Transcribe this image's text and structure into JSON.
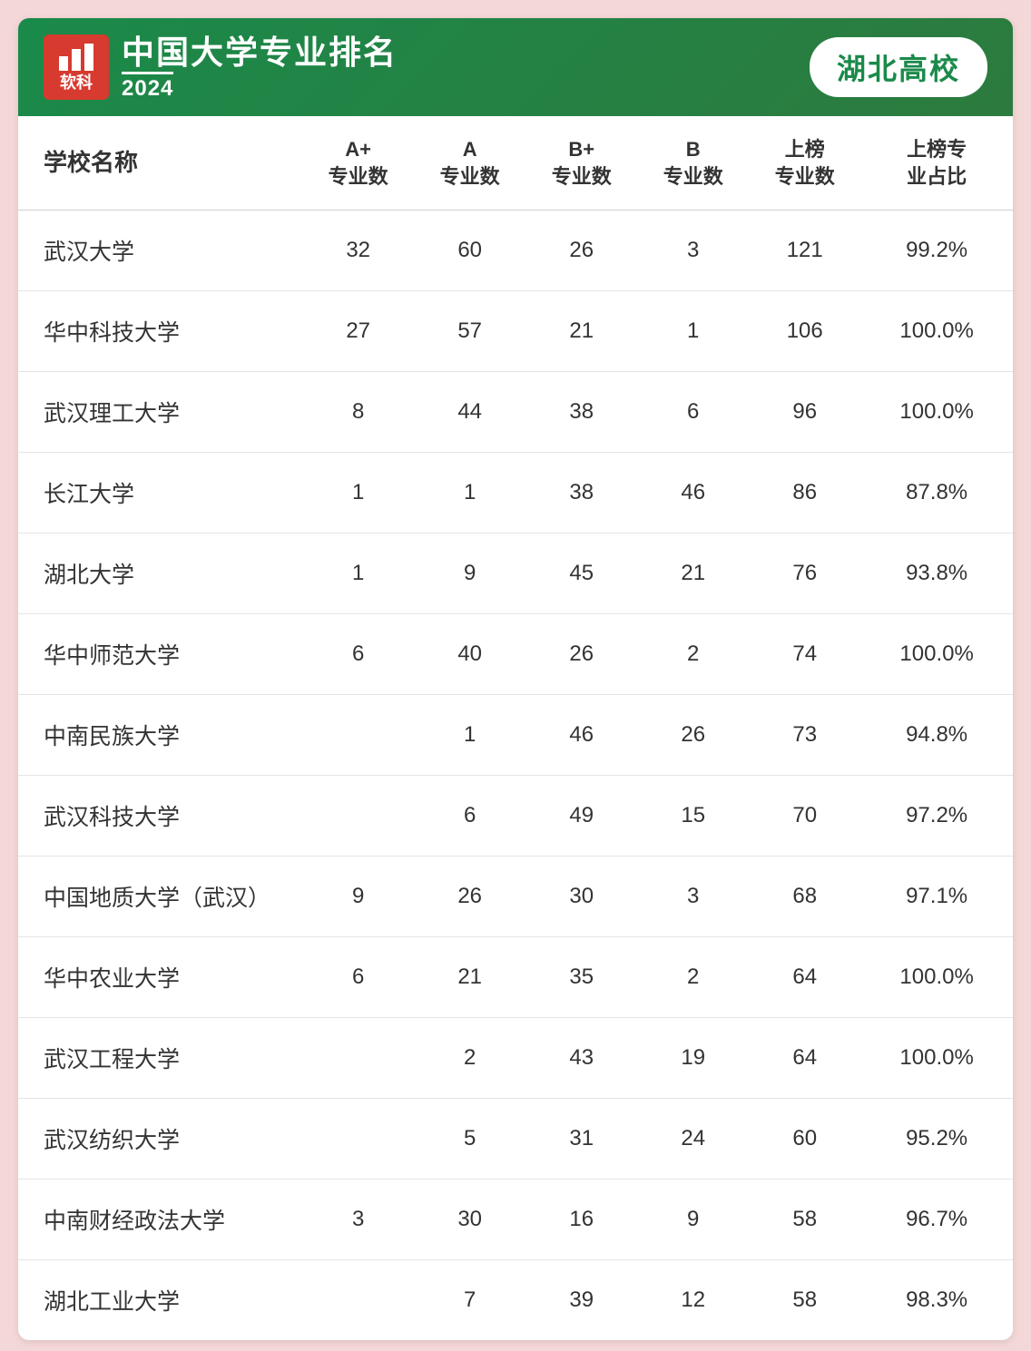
{
  "header": {
    "logo_label": "软科",
    "title": "中国大学专业排名",
    "year": "2024",
    "badge": "湖北高校"
  },
  "colors": {
    "page_bg": "#f4d7d7",
    "header_bg_start": "#1a8a4a",
    "header_bg_end": "#2d7a3e",
    "logo_bg": "#d73a2e",
    "badge_bg": "#ffffff",
    "badge_text": "#1a8a4a",
    "text": "#333333",
    "row_border": "#e5e5e5",
    "header_border": "#d0d0d0"
  },
  "table": {
    "type": "table",
    "columns": [
      {
        "key": "name",
        "label": "学校名称",
        "width": "28%",
        "align": "left"
      },
      {
        "key": "a_plus",
        "label": "A+\n专业数",
        "width": "11%",
        "align": "center"
      },
      {
        "key": "a",
        "label": "A\n专业数",
        "width": "11%",
        "align": "center"
      },
      {
        "key": "b_plus",
        "label": "B+\n专业数",
        "width": "11%",
        "align": "center"
      },
      {
        "key": "b",
        "label": "B\n专业数",
        "width": "11%",
        "align": "center"
      },
      {
        "key": "listed",
        "label": "上榜\n专业数",
        "width": "11%",
        "align": "center"
      },
      {
        "key": "pct",
        "label": "上榜专\n业占比",
        "width": "15%",
        "align": "center"
      }
    ],
    "rows": [
      {
        "name": "武汉大学",
        "a_plus": "32",
        "a": "60",
        "b_plus": "26",
        "b": "3",
        "listed": "121",
        "pct": "99.2%"
      },
      {
        "name": "华中科技大学",
        "a_plus": "27",
        "a": "57",
        "b_plus": "21",
        "b": "1",
        "listed": "106",
        "pct": "100.0%"
      },
      {
        "name": "武汉理工大学",
        "a_plus": "8",
        "a": "44",
        "b_plus": "38",
        "b": "6",
        "listed": "96",
        "pct": "100.0%"
      },
      {
        "name": "长江大学",
        "a_plus": "1",
        "a": "1",
        "b_plus": "38",
        "b": "46",
        "listed": "86",
        "pct": "87.8%"
      },
      {
        "name": "湖北大学",
        "a_plus": "1",
        "a": "9",
        "b_plus": "45",
        "b": "21",
        "listed": "76",
        "pct": "93.8%"
      },
      {
        "name": "华中师范大学",
        "a_plus": "6",
        "a": "40",
        "b_plus": "26",
        "b": "2",
        "listed": "74",
        "pct": "100.0%"
      },
      {
        "name": "中南民族大学",
        "a_plus": "",
        "a": "1",
        "b_plus": "46",
        "b": "26",
        "listed": "73",
        "pct": "94.8%"
      },
      {
        "name": "武汉科技大学",
        "a_plus": "",
        "a": "6",
        "b_plus": "49",
        "b": "15",
        "listed": "70",
        "pct": "97.2%"
      },
      {
        "name": "中国地质大学（武汉）",
        "a_plus": "9",
        "a": "26",
        "b_plus": "30",
        "b": "3",
        "listed": "68",
        "pct": "97.1%"
      },
      {
        "name": "华中农业大学",
        "a_plus": "6",
        "a": "21",
        "b_plus": "35",
        "b": "2",
        "listed": "64",
        "pct": "100.0%"
      },
      {
        "name": "武汉工程大学",
        "a_plus": "",
        "a": "2",
        "b_plus": "43",
        "b": "19",
        "listed": "64",
        "pct": "100.0%"
      },
      {
        "name": "武汉纺织大学",
        "a_plus": "",
        "a": "5",
        "b_plus": "31",
        "b": "24",
        "listed": "60",
        "pct": "95.2%"
      },
      {
        "name": "中南财经政法大学",
        "a_plus": "3",
        "a": "30",
        "b_plus": "16",
        "b": "9",
        "listed": "58",
        "pct": "96.7%"
      },
      {
        "name": "湖北工业大学",
        "a_plus": "",
        "a": "7",
        "b_plus": "39",
        "b": "12",
        "listed": "58",
        "pct": "98.3%"
      }
    ]
  }
}
